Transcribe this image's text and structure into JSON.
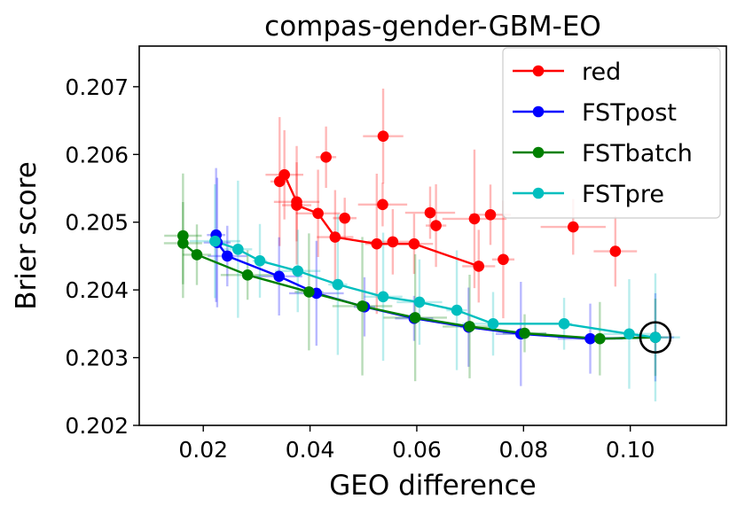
{
  "chart_data": {
    "type": "scatter",
    "title": "compas-gender-GBM-EO",
    "xlabel": "GEO difference",
    "ylabel": "Brier score",
    "xlim": [
      0.008,
      0.118
    ],
    "ylim": [
      0.202,
      0.2076
    ],
    "xticks": [
      0.02,
      0.04,
      0.06,
      0.08,
      0.1
    ],
    "xtick_labels": [
      "0.02",
      "0.04",
      "0.06",
      "0.08",
      "0.10"
    ],
    "yticks": [
      0.202,
      0.203,
      0.204,
      0.205,
      0.206,
      0.207
    ],
    "ytick_labels": [
      "0.202",
      "0.203",
      "0.204",
      "0.205",
      "0.206",
      "0.207"
    ],
    "grid": false,
    "legend_position": "top-right",
    "highlight_point": {
      "x": 0.1047,
      "y": 0.2033
    },
    "series": [
      {
        "name": "red",
        "color": "#ff0000",
        "scatter": [
          [
            0.0537,
            0.20627
          ],
          [
            0.043,
            0.20596
          ],
          [
            0.0352,
            0.2057
          ],
          [
            0.0343,
            0.2056
          ],
          [
            0.0375,
            0.2053
          ],
          [
            0.0375,
            0.20525
          ],
          [
            0.0536,
            0.20526
          ],
          [
            0.0738,
            0.20511
          ],
          [
            0.0625,
            0.20514
          ],
          [
            0.0415,
            0.20513
          ],
          [
            0.0465,
            0.20506
          ],
          [
            0.0708,
            0.20505
          ],
          [
            0.0636,
            0.20495
          ],
          [
            0.0893,
            0.20493
          ],
          [
            0.0447,
            0.20478
          ],
          [
            0.0555,
            0.20471
          ],
          [
            0.0525,
            0.20468
          ],
          [
            0.0595,
            0.20468
          ],
          [
            0.0972,
            0.20457
          ],
          [
            0.0762,
            0.20445
          ],
          [
            0.0716,
            0.20435
          ]
        ],
        "line": [
          [
            0.0343,
            0.2056
          ],
          [
            0.0352,
            0.2057
          ],
          [
            0.0375,
            0.2053
          ],
          [
            0.0375,
            0.20525
          ],
          [
            0.0415,
            0.20513
          ],
          [
            0.0447,
            0.20478
          ],
          [
            0.0525,
            0.20468
          ],
          [
            0.0595,
            0.20468
          ],
          [
            0.0716,
            0.20435
          ]
        ]
      },
      {
        "name": "FSTpost",
        "color": "#0000ff",
        "scatter": [
          [
            0.0224,
            0.20481
          ],
          [
            0.0226,
            0.2047
          ],
          [
            0.0245,
            0.2045
          ],
          [
            0.0342,
            0.2042
          ],
          [
            0.0412,
            0.20395
          ],
          [
            0.0502,
            0.20375
          ],
          [
            0.0595,
            0.20358
          ],
          [
            0.0697,
            0.20345
          ],
          [
            0.0795,
            0.20335
          ],
          [
            0.0925,
            0.20328
          ],
          [
            0.1047,
            0.2033
          ]
        ]
      },
      {
        "name": "FSTbatch",
        "color": "#008000",
        "scatter": [
          [
            0.0162,
            0.2048
          ],
          [
            0.0162,
            0.20469
          ],
          [
            0.0188,
            0.20452
          ],
          [
            0.0283,
            0.20422
          ],
          [
            0.0398,
            0.20397
          ],
          [
            0.0498,
            0.20376
          ],
          [
            0.0597,
            0.20359
          ],
          [
            0.0699,
            0.20346
          ],
          [
            0.0802,
            0.20336
          ],
          [
            0.0943,
            0.20328
          ],
          [
            0.1047,
            0.2033
          ]
        ]
      },
      {
        "name": "FSTpre",
        "color": "#00bfbf",
        "scatter": [
          [
            0.0222,
            0.20472
          ],
          [
            0.0265,
            0.2046
          ],
          [
            0.0306,
            0.20443
          ],
          [
            0.0377,
            0.20428
          ],
          [
            0.0452,
            0.20408
          ],
          [
            0.0537,
            0.2039
          ],
          [
            0.0605,
            0.20382
          ],
          [
            0.0675,
            0.2037
          ],
          [
            0.0743,
            0.2035
          ],
          [
            0.0876,
            0.2035
          ],
          [
            0.0998,
            0.20335
          ],
          [
            0.1047,
            0.2033
          ]
        ]
      }
    ]
  }
}
